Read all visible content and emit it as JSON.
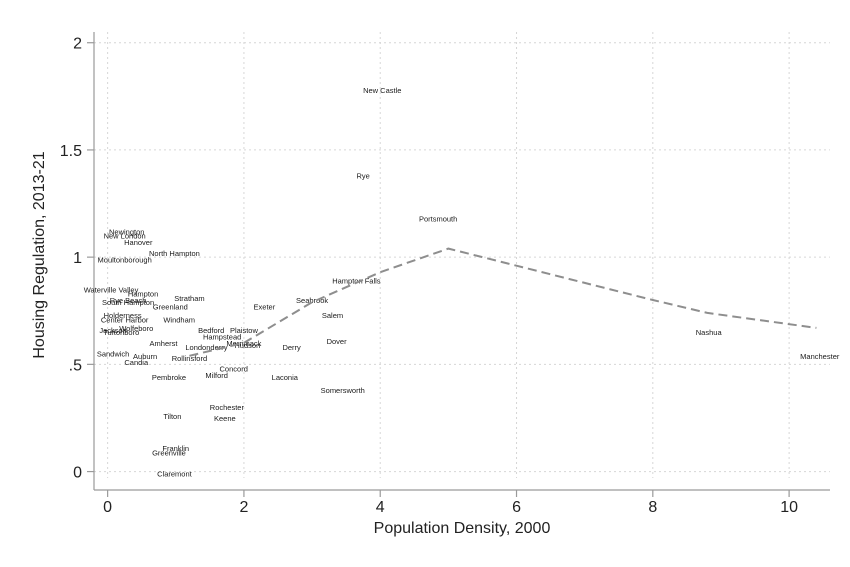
{
  "chart_data": {
    "type": "scatter",
    "title": "",
    "xlabel": "Population Density, 2000",
    "ylabel": "Housing Regulation, 2013-21",
    "xlim": [
      -0.2,
      10.6
    ],
    "ylim": [
      -0.03,
      2.05
    ],
    "x_ticks": [
      0,
      2,
      4,
      6,
      8,
      10
    ],
    "x_tick_labels": [
      "0",
      "2",
      "4",
      "6",
      "8",
      "10"
    ],
    "y_ticks": [
      0,
      0.5,
      1,
      1.5,
      2
    ],
    "y_tick_labels": [
      "0",
      ".5",
      "1",
      "1.5",
      "2"
    ],
    "grid": true,
    "marker": "town name labels",
    "points": [
      {
        "label": "New Castle",
        "x": 4.03,
        "y": 1.78
      },
      {
        "label": "Rye",
        "x": 3.75,
        "y": 1.38
      },
      {
        "label": "Portsmouth",
        "x": 4.85,
        "y": 1.18
      },
      {
        "label": "Newington",
        "x": 0.28,
        "y": 1.12
      },
      {
        "label": "New London",
        "x": 0.25,
        "y": 1.1
      },
      {
        "label": "Hanover",
        "x": 0.45,
        "y": 1.07
      },
      {
        "label": "North Hampton",
        "x": 0.98,
        "y": 1.02
      },
      {
        "label": "Moultonborough",
        "x": 0.25,
        "y": 0.99
      },
      {
        "label": "Hampton Falls",
        "x": 3.65,
        "y": 0.89
      },
      {
        "label": "Waterville Valley",
        "x": 0.05,
        "y": 0.85
      },
      {
        "label": "Hampton",
        "x": 0.52,
        "y": 0.83
      },
      {
        "label": "Rye Beach",
        "x": 0.3,
        "y": 0.8
      },
      {
        "label": "Stratham",
        "x": 1.2,
        "y": 0.81
      },
      {
        "label": "South Hampton",
        "x": 0.3,
        "y": 0.79
      },
      {
        "label": "Greenland",
        "x": 0.92,
        "y": 0.77
      },
      {
        "label": "Seabrook",
        "x": 3.0,
        "y": 0.8
      },
      {
        "label": "Exeter",
        "x": 2.3,
        "y": 0.77
      },
      {
        "label": "Salem",
        "x": 3.3,
        "y": 0.73
      },
      {
        "label": "Holderness",
        "x": 0.22,
        "y": 0.73
      },
      {
        "label": "Center Harbor",
        "x": 0.25,
        "y": 0.71
      },
      {
        "label": "Windham",
        "x": 1.05,
        "y": 0.71
      },
      {
        "label": "Jackson",
        "x": 0.08,
        "y": 0.66
      },
      {
        "label": "Tuftonboro",
        "x": 0.2,
        "y": 0.65
      },
      {
        "label": "Wolfeboro",
        "x": 0.42,
        "y": 0.67
      },
      {
        "label": "Bedford",
        "x": 1.52,
        "y": 0.66
      },
      {
        "label": "Plaistow",
        "x": 2.0,
        "y": 0.66
      },
      {
        "label": "Hampstead",
        "x": 1.68,
        "y": 0.63
      },
      {
        "label": "Amherst",
        "x": 0.82,
        "y": 0.6
      },
      {
        "label": "Londonderry",
        "x": 1.45,
        "y": 0.58
      },
      {
        "label": "Merrimack",
        "x": 2.0,
        "y": 0.6
      },
      {
        "label": "Hudson",
        "x": 2.05,
        "y": 0.59
      },
      {
        "label": "Derry",
        "x": 2.7,
        "y": 0.58
      },
      {
        "label": "Dover",
        "x": 3.36,
        "y": 0.61
      },
      {
        "label": "Nashua",
        "x": 8.82,
        "y": 0.65
      },
      {
        "label": "Manchester",
        "x": 10.45,
        "y": 0.54
      },
      {
        "label": "Sandwich",
        "x": 0.08,
        "y": 0.55
      },
      {
        "label": "Auburn",
        "x": 0.55,
        "y": 0.54
      },
      {
        "label": "Candia",
        "x": 0.42,
        "y": 0.51
      },
      {
        "label": "Rollinsford",
        "x": 1.2,
        "y": 0.53
      },
      {
        "label": "Concord",
        "x": 1.85,
        "y": 0.48
      },
      {
        "label": "Milford",
        "x": 1.6,
        "y": 0.45
      },
      {
        "label": "Laconia",
        "x": 2.6,
        "y": 0.44
      },
      {
        "label": "Pembroke",
        "x": 0.9,
        "y": 0.44
      },
      {
        "label": "Somersworth",
        "x": 3.45,
        "y": 0.38
      },
      {
        "label": "Rochester",
        "x": 1.75,
        "y": 0.3
      },
      {
        "label": "Keene",
        "x": 1.72,
        "y": 0.25
      },
      {
        "label": "Tilton",
        "x": 0.95,
        "y": 0.26
      },
      {
        "label": "Franklin",
        "x": 1.0,
        "y": 0.11
      },
      {
        "label": "Greenville",
        "x": 0.9,
        "y": 0.09
      },
      {
        "label": "Claremont",
        "x": 0.98,
        "y": -0.01
      }
    ],
    "fit_line": {
      "style": "dashed",
      "x": [
        1.2,
        2.0,
        3.0,
        4.0,
        5.0,
        6.0,
        7.0,
        8.0,
        8.8,
        10.4
      ],
      "y": [
        0.54,
        0.6,
        0.79,
        0.93,
        1.04,
        0.96,
        0.88,
        0.8,
        0.74,
        0.67
      ]
    }
  }
}
